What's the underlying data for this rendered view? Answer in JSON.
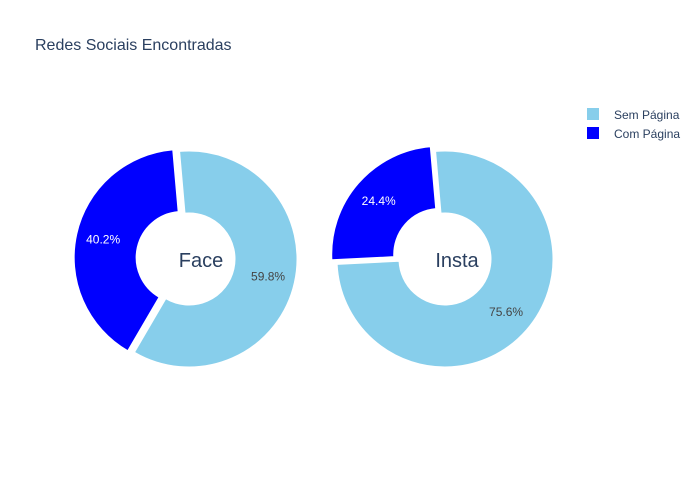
{
  "chart_data": {
    "type": "pie",
    "title": "Redes Sociais Encontradas",
    "legend": {
      "placement": "top-right",
      "entries": [
        {
          "label": "Sem Página",
          "color": "#87ceeb"
        },
        {
          "label": "Com Página",
          "color": "#0000ff"
        }
      ]
    },
    "pies": [
      {
        "center_label": "Face",
        "slices": [
          {
            "name": "Sem Página",
            "value": 59.8,
            "label": "59.8%",
            "color": "#87ceeb"
          },
          {
            "name": "Com Página",
            "value": 40.2,
            "label": "40.2%",
            "color": "#0000ff"
          }
        ]
      },
      {
        "center_label": "Insta",
        "slices": [
          {
            "name": "Sem Página",
            "value": 75.6,
            "label": "75.6%",
            "color": "#87ceeb"
          },
          {
            "name": "Com Página",
            "value": 24.4,
            "label": "24.4%",
            "color": "#0000ff"
          }
        ]
      }
    ]
  }
}
